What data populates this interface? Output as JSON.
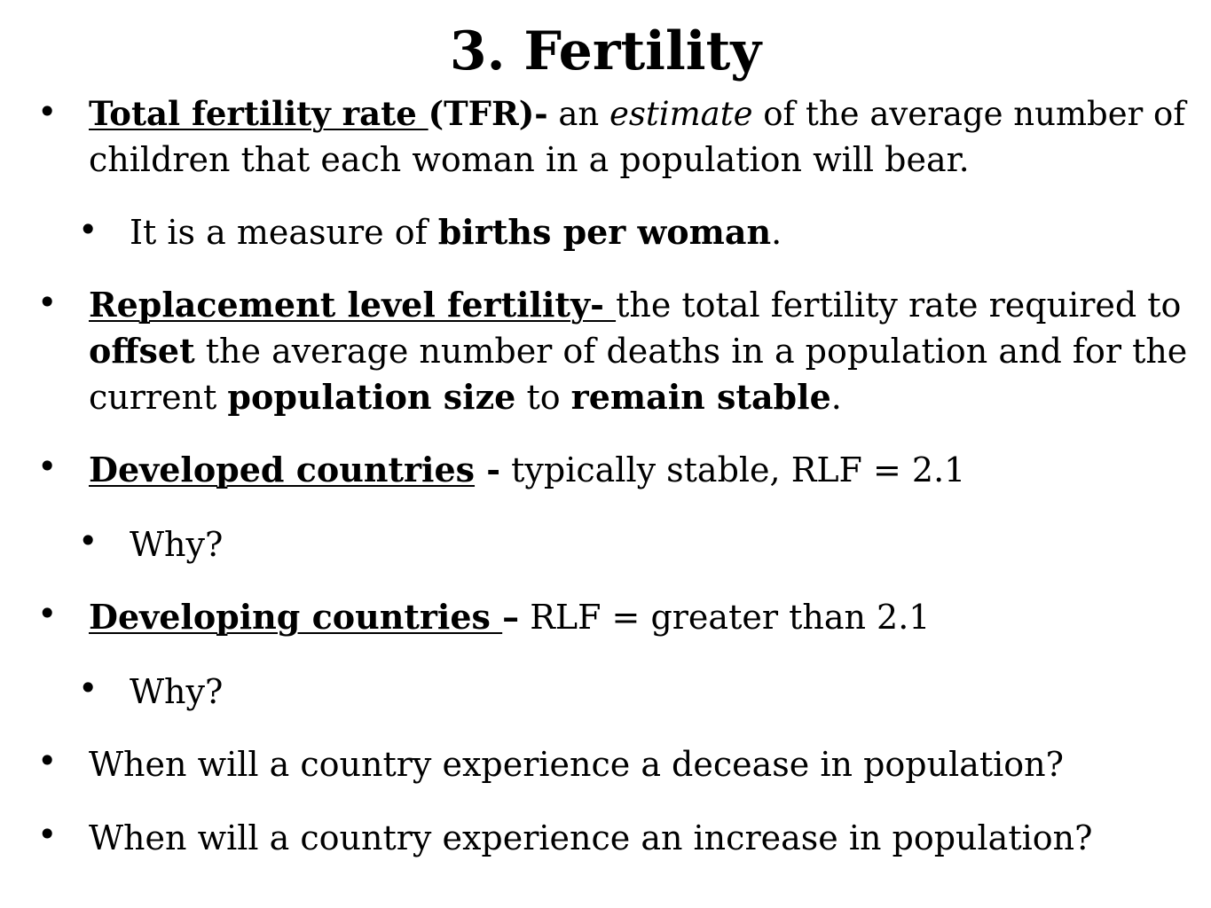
{
  "title": "3. Fertility",
  "bullet_glyph": "•",
  "items": {
    "tfr": {
      "term": "Total fertility rate ",
      "abbr": "(TFR)-",
      "t1": " an ",
      "em": "estimate",
      "line1_rest": " of the average number of",
      "line2": "children that each woman in a population will bear."
    },
    "measure": {
      "t1": "It is a measure of ",
      "b1": "births per woman",
      "t2": "."
    },
    "rlf": {
      "term": "Replacement level fertility- ",
      "line1_rest": "the total fertility rate required to",
      "b_offset": "offset",
      "line2_rest": " the average number of deaths in a population and for the",
      "line3_t1": "current ",
      "line3_b1": "population size",
      "line3_t2": " to ",
      "line3_b2": "remain stable",
      "line3_t3": "."
    },
    "developed": {
      "term": "Developed countries",
      "sep": " -",
      "rest": " typically stable, RLF = 2.1"
    },
    "why1": "Why?",
    "developing": {
      "term": "Developing countries ",
      "sep": "–",
      "rest": " RLF = greater than 2.1"
    },
    "why2": "Why?",
    "q_decrease": "When will a country experience a decease in population?",
    "q_increase": "When will a country experience an increase in population?"
  }
}
